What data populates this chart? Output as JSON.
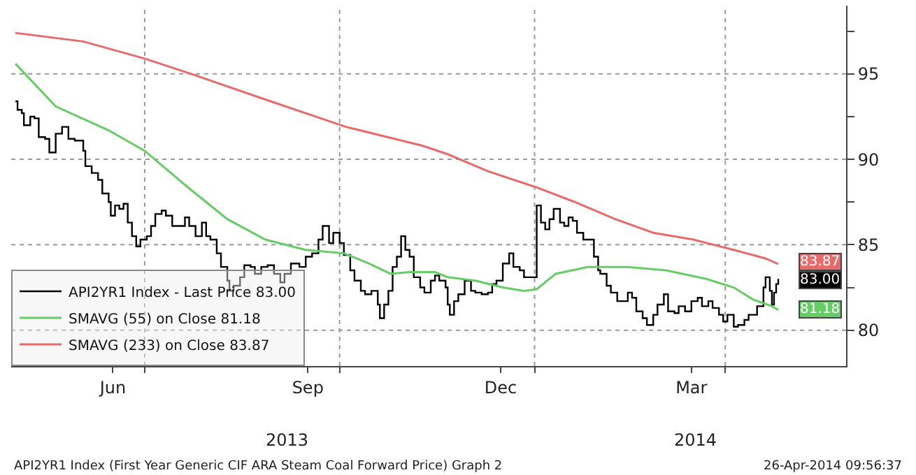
{
  "chart_data": {
    "type": "line",
    "xlim": [
      "2013-04-29",
      "2014-05-28"
    ],
    "xticks": [
      {
        "value": "2013-06-16",
        "label": "Jun"
      },
      {
        "value": "2013-09-16",
        "label": "Sep"
      },
      {
        "value": "2013-12-16",
        "label": "Dec"
      },
      {
        "value": "2014-03-16",
        "label": "Mar"
      },
      {
        "value": "2013-07-01",
        "label": null
      },
      {
        "value": "2013-10-01",
        "label": null
      },
      {
        "value": "2014-01-01",
        "label": null
      },
      {
        "value": "2014-04-01",
        "label": null
      }
    ],
    "ylim": [
      77.9,
      99
    ],
    "yticks": [
      80,
      85,
      90,
      95,
      {
        "value": 82.5,
        "label": null
      },
      {
        "value": 87.5,
        "label": null
      },
      {
        "value": 92.5,
        "label": null
      },
      {
        "value": 97.5,
        "label": null
      }
    ],
    "grid": true,
    "legend": "bottom left",
    "marker": "none",
    "line_style": "solid",
    "annotations": [
      "2013",
      "2014",
      "API2YR1 Index (First Year Generic CIF ARA Steam Coal Forward Price) Graph 2",
      "26-Apr-2014 09:56:37"
    ],
    "series": [
      {
        "name": "API2YR1 Index - Last Price 83.00",
        "type": "step",
        "color": "#000000",
        "x": [
          "2013-05-01",
          "2013-05-02",
          "2013-05-04",
          "2013-05-05",
          "2013-05-08",
          "2013-05-10",
          "2013-05-12",
          "2013-05-15",
          "2013-05-17",
          "2013-05-20",
          "2013-05-23",
          "2013-05-26",
          "2013-05-29",
          "2013-06-02",
          "2013-06-03",
          "2013-06-06",
          "2013-06-09",
          "2013-06-11",
          "2013-06-14",
          "2013-06-15",
          "2013-06-17",
          "2013-06-19",
          "2013-06-21",
          "2013-06-23",
          "2013-06-25",
          "2013-06-27",
          "2013-06-29",
          "2013-07-02",
          "2013-07-04",
          "2013-07-06",
          "2013-07-09",
          "2013-07-11",
          "2013-07-14",
          "2013-07-17",
          "2013-07-20",
          "2013-07-22",
          "2013-07-25",
          "2013-07-28",
          "2013-07-30",
          "2013-08-01",
          "2013-08-04",
          "2013-08-06",
          "2013-08-09",
          "2013-08-10",
          "2013-08-12",
          "2013-08-15",
          "2013-08-17",
          "2013-08-20",
          "2013-08-22",
          "2013-08-25",
          "2013-08-28",
          "2013-08-31",
          "2013-09-03",
          "2013-09-05",
          "2013-09-08",
          "2013-09-12",
          "2013-09-15",
          "2013-09-18",
          "2013-09-21",
          "2013-09-23",
          "2013-09-26",
          "2013-09-28",
          "2013-10-01",
          "2013-10-03",
          "2013-10-06",
          "2013-10-08",
          "2013-10-11",
          "2013-10-13",
          "2013-10-16",
          "2013-10-19",
          "2013-10-20",
          "2013-10-22",
          "2013-10-24",
          "2013-10-26",
          "2013-10-28",
          "2013-10-30",
          "2013-11-01",
          "2013-11-03",
          "2013-11-05",
          "2013-11-08",
          "2013-11-10",
          "2013-11-13",
          "2013-11-15",
          "2013-11-17",
          "2013-11-20",
          "2013-11-21",
          "2013-11-22",
          "2013-11-24",
          "2013-11-26",
          "2013-11-29",
          "2013-12-02",
          "2013-12-04",
          "2013-12-07",
          "2013-12-10",
          "2013-12-12",
          "2013-12-14",
          "2013-12-17",
          "2013-12-20",
          "2013-12-22",
          "2013-12-25",
          "2013-12-27",
          "2014-01-02",
          "2014-01-04",
          "2014-01-06",
          "2014-01-08",
          "2014-01-10",
          "2014-01-13",
          "2014-01-15",
          "2014-01-17",
          "2014-01-19",
          "2014-01-21",
          "2014-01-24",
          "2014-01-26",
          "2014-01-29",
          "2014-01-31",
          "2014-02-01",
          "2014-02-04",
          "2014-02-06",
          "2014-02-09",
          "2014-02-11",
          "2014-02-14",
          "2014-02-16",
          "2014-02-18",
          "2014-02-21",
          "2014-02-23",
          "2014-02-26",
          "2014-02-28",
          "2014-03-03",
          "2014-03-05",
          "2014-03-08",
          "2014-03-10",
          "2014-03-13",
          "2014-03-16",
          "2014-03-19",
          "2014-03-21",
          "2014-03-24",
          "2014-03-26",
          "2014-03-29",
          "2014-03-31",
          "2014-04-02",
          "2014-04-05",
          "2014-04-07",
          "2014-04-10",
          "2014-04-12",
          "2014-04-14",
          "2014-04-16",
          "2014-04-19",
          "2014-04-20",
          "2014-04-22",
          "2014-04-23",
          "2014-04-24",
          "2014-04-25",
          "2014-04-26"
        ],
        "values": [
          93.4,
          92.9,
          92.7,
          92.0,
          92.5,
          92.4,
          91.3,
          91.2,
          90.4,
          91.5,
          91.9,
          91.2,
          91.1,
          90.5,
          89.6,
          89.2,
          88.8,
          88.0,
          87.5,
          86.7,
          87.3,
          87.1,
          87.4,
          86.3,
          85.5,
          84.9,
          85.3,
          85.5,
          86.1,
          86.8,
          87.0,
          86.7,
          86.1,
          86.1,
          86.6,
          86.1,
          85.5,
          86.3,
          85.5,
          85.3,
          84.5,
          83.7,
          82.9,
          82.3,
          82.6,
          83.1,
          83.8,
          83.7,
          83.3,
          83.7,
          83.8,
          83.3,
          82.8,
          83.3,
          83.9,
          83.7,
          84.3,
          84.5,
          85.3,
          86.1,
          85.1,
          85.7,
          85.1,
          84.4,
          83.5,
          82.9,
          82.3,
          82.1,
          82.3,
          81.5,
          80.7,
          81.5,
          82.3,
          83.7,
          84.3,
          85.5,
          84.7,
          84.3,
          83.1,
          82.5,
          82.2,
          82.9,
          83.2,
          82.9,
          82.5,
          81.5,
          80.9,
          81.7,
          82.1,
          82.9,
          82.3,
          82.2,
          82.1,
          82.2,
          82.7,
          82.9,
          83.9,
          84.5,
          83.7,
          83.5,
          83.1,
          87.3,
          86.3,
          85.9,
          86.5,
          87.1,
          86.3,
          86.1,
          86.6,
          86.4,
          85.7,
          85.3,
          85.3,
          84.3,
          83.5,
          83.3,
          82.6,
          82.2,
          81.7,
          81.7,
          82.2,
          81.9,
          81.1,
          80.7,
          80.3,
          80.9,
          81.5,
          82.1,
          81.1,
          81.0,
          81.4,
          81.1,
          81.7,
          81.9,
          81.4,
          81.7,
          81.3,
          80.9,
          80.5,
          80.9,
          80.2,
          80.3,
          80.6,
          80.9,
          80.9,
          81.4,
          82.5,
          83.1,
          82.3,
          81.5,
          82.2,
          82.7,
          83.0
        ],
        "value_labels": [
          null,
          null,
          null,
          null,
          null,
          null,
          null,
          null,
          null,
          null,
          null,
          null,
          null,
          null,
          null,
          null,
          null,
          null,
          null,
          null,
          null,
          null,
          null,
          null,
          null,
          null,
          null,
          null,
          null,
          null,
          null,
          null,
          null,
          null,
          null,
          null,
          null,
          null,
          null,
          null,
          null,
          null,
          null,
          null,
          null,
          null,
          null,
          null,
          null,
          null,
          null,
          null,
          null,
          null,
          null,
          null,
          null,
          null,
          null,
          null,
          null,
          null,
          null,
          null,
          null,
          null,
          null,
          null,
          null,
          null,
          null,
          null,
          null,
          null,
          null,
          null,
          null,
          null,
          null,
          null,
          null,
          null,
          null,
          null,
          null,
          null,
          null,
          null,
          null,
          null,
          null,
          null,
          null,
          null,
          null,
          null,
          null,
          null,
          null,
          null,
          null,
          null,
          null,
          null,
          null,
          null,
          null,
          null,
          null,
          null,
          null,
          null,
          null,
          null,
          null,
          null,
          null,
          null,
          null,
          null,
          null,
          null,
          null,
          null,
          null,
          null,
          null,
          null,
          null,
          null,
          null,
          null,
          null,
          null,
          null,
          null,
          null,
          null,
          null,
          null,
          null,
          null,
          null,
          null,
          null,
          null,
          null,
          null,
          null,
          null,
          null,
          null,
          "83.00"
        ]
      },
      {
        "name": "SMAVG (55) on Close 81.18",
        "type": "line",
        "color": "#66cc66",
        "x": [
          "2013-05-01",
          "2013-05-20",
          "2013-06-14",
          "2013-07-01",
          "2013-07-21",
          "2013-08-09",
          "2013-08-27",
          "2013-09-15",
          "2013-10-03",
          "2013-10-15",
          "2013-10-25",
          "2013-11-03",
          "2013-11-15",
          "2013-11-21",
          "2013-12-04",
          "2013-12-17",
          "2013-12-27",
          "2014-01-02",
          "2014-01-11",
          "2014-01-26",
          "2014-02-14",
          "2014-03-04",
          "2014-03-23",
          "2014-04-05",
          "2014-04-14",
          "2014-04-23",
          "2014-04-26"
        ],
        "values": [
          95.6,
          93.1,
          91.7,
          90.5,
          88.4,
          86.5,
          85.3,
          84.7,
          84.5,
          83.9,
          83.3,
          83.4,
          83.4,
          83.1,
          82.9,
          82.5,
          82.3,
          82.4,
          83.3,
          83.7,
          83.7,
          83.5,
          83.0,
          82.5,
          81.8,
          81.4,
          81.18
        ],
        "value_labels": [
          null,
          null,
          null,
          null,
          null,
          null,
          null,
          null,
          null,
          null,
          null,
          null,
          null,
          null,
          null,
          null,
          null,
          null,
          null,
          null,
          null,
          null,
          null,
          null,
          null,
          null,
          "81.18"
        ]
      },
      {
        "name": "SMAVG (233) on Close 83.87",
        "type": "line",
        "color": "#e86a6a",
        "x": [
          "2013-05-01",
          "2013-06-02",
          "2013-07-01",
          "2013-07-23",
          "2013-08-27",
          "2013-10-04",
          "2013-11-09",
          "2013-11-21",
          "2013-12-10",
          "2014-01-01",
          "2014-01-20",
          "2014-02-08",
          "2014-02-26",
          "2014-03-17",
          "2014-04-05",
          "2014-04-20",
          "2014-04-26"
        ],
        "values": [
          97.4,
          96.9,
          95.9,
          95.0,
          93.5,
          91.9,
          90.8,
          90.3,
          89.3,
          88.4,
          87.5,
          86.5,
          85.7,
          85.3,
          84.7,
          84.2,
          83.87
        ],
        "value_labels": [
          null,
          null,
          null,
          null,
          null,
          null,
          null,
          null,
          null,
          null,
          null,
          null,
          null,
          null,
          null,
          null,
          "83.87"
        ]
      }
    ]
  }
}
